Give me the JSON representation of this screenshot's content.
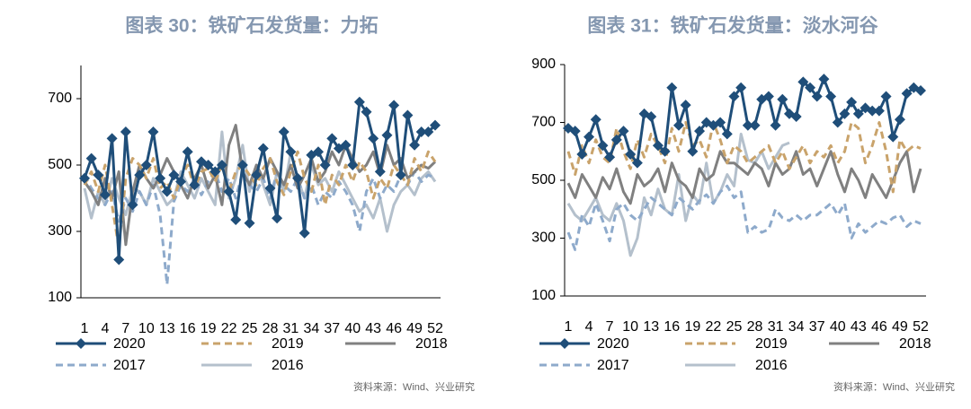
{
  "chart_data": [
    {
      "type": "line",
      "title": "图表 30：铁矿石发货量：力拓",
      "source": "资料来源：Wind、兴业研究",
      "categories": [
        "1",
        null,
        null,
        "4",
        null,
        null,
        "7",
        null,
        null,
        "10",
        null,
        null,
        "13",
        null,
        null,
        "16",
        null,
        null,
        "19",
        null,
        null,
        "22",
        null,
        null,
        "25",
        null,
        null,
        "28",
        null,
        null,
        "31",
        null,
        null,
        "34",
        null,
        null,
        "37",
        null,
        null,
        "40",
        null,
        null,
        "43",
        null,
        null,
        "46",
        null,
        null,
        "49",
        null,
        null,
        "52"
      ],
      "ylim": [
        100,
        800
      ],
      "yticks": [
        100,
        300,
        500,
        700
      ],
      "series": [
        {
          "name": "2020",
          "color": "#1f4e79",
          "marker": "diamond",
          "linestyle": "solid",
          "values": [
            460,
            520,
            470,
            410,
            580,
            215,
            600,
            380,
            470,
            500,
            600,
            460,
            420,
            470,
            450,
            540,
            440,
            510,
            500,
            480,
            500,
            420,
            335,
            500,
            325,
            470,
            550,
            430,
            340,
            600,
            540,
            460,
            295,
            530,
            540,
            500,
            580,
            550,
            560,
            500,
            690,
            660,
            580,
            480,
            590,
            680,
            470,
            650,
            560,
            600,
            600,
            620
          ]
        },
        {
          "name": "2019",
          "color": "#c9a36b",
          "marker": null,
          "linestyle": "dashed",
          "values": [
            440,
            480,
            420,
            500,
            380,
            250,
            460,
            520,
            500,
            460,
            520,
            430,
            450,
            400,
            460,
            500,
            430,
            480,
            490,
            450,
            500,
            420,
            480,
            500,
            470,
            440,
            490,
            520,
            450,
            410,
            480,
            540,
            460,
            420,
            500,
            380,
            470,
            440,
            500,
            450,
            510,
            480,
            400,
            460,
            430,
            500,
            470,
            440,
            520,
            480,
            540,
            510
          ]
        },
        {
          "name": "2018",
          "color": "#808080",
          "marker": null,
          "linestyle": "solid",
          "values": [
            450,
            420,
            380,
            460,
            400,
            480,
            260,
            420,
            500,
            460,
            430,
            470,
            520,
            480,
            440,
            400,
            460,
            500,
            430,
            470,
            380,
            560,
            620,
            480,
            440,
            500,
            460,
            520,
            480,
            440,
            500,
            430,
            470,
            520,
            450,
            480,
            540,
            500,
            560,
            520,
            480,
            500,
            540,
            470,
            560,
            500,
            520,
            460,
            480,
            500,
            490,
            510
          ]
        },
        {
          "name": "2017",
          "color": "#8eaacb",
          "marker": null,
          "linestyle": "dashed",
          "values": [
            470,
            430,
            400,
            380,
            420,
            330,
            400,
            360,
            420,
            380,
            440,
            350,
            140,
            390,
            440,
            420,
            460,
            410,
            450,
            480,
            420,
            460,
            400,
            480,
            440,
            420,
            460,
            400,
            480,
            440,
            420,
            460,
            400,
            440,
            380,
            420,
            400,
            450,
            420,
            380,
            300,
            420,
            460,
            400,
            440,
            420,
            470,
            440,
            480,
            450,
            470,
            460
          ]
        },
        {
          "name": "2016",
          "color": "#b4c0cc",
          "marker": null,
          "linestyle": "solid",
          "values": [
            430,
            340,
            420,
            380,
            460,
            400,
            350,
            430,
            420,
            380,
            460,
            420,
            380,
            400,
            480,
            440,
            400,
            460,
            420,
            380,
            600,
            400,
            460,
            560,
            420,
            500,
            440,
            380,
            480,
            420,
            540,
            460,
            400,
            500,
            440,
            460,
            420,
            480,
            440,
            400,
            360,
            380,
            340,
            400,
            300,
            380,
            420,
            440,
            410,
            460,
            480,
            450
          ]
        }
      ]
    },
    {
      "type": "line",
      "title": "图表 31：铁矿石发货量：淡水河谷",
      "source": "资料来源：Wind、兴业研究",
      "categories": [
        "1",
        null,
        null,
        "4",
        null,
        null,
        "7",
        null,
        null,
        "10",
        null,
        null,
        "13",
        null,
        null,
        "16",
        null,
        null,
        "19",
        null,
        null,
        "22",
        null,
        null,
        "25",
        null,
        null,
        "28",
        null,
        null,
        "31",
        null,
        null,
        "34",
        null,
        null,
        "37",
        null,
        null,
        "40",
        null,
        null,
        "43",
        null,
        null,
        "46",
        null,
        null,
        "49",
        null,
        null,
        "52"
      ],
      "ylim": [
        100,
        900
      ],
      "yticks": [
        100,
        300,
        500,
        700,
        900
      ],
      "series": [
        {
          "name": "2020",
          "color": "#1f4e79",
          "marker": "diamond",
          "linestyle": "solid",
          "values": [
            680,
            670,
            590,
            650,
            710,
            620,
            580,
            640,
            670,
            590,
            560,
            730,
            720,
            620,
            600,
            820,
            690,
            760,
            600,
            670,
            700,
            690,
            700,
            660,
            790,
            820,
            690,
            690,
            780,
            790,
            690,
            780,
            730,
            720,
            840,
            820,
            790,
            850,
            790,
            700,
            730,
            770,
            730,
            750,
            740,
            740,
            790,
            650,
            710,
            800,
            820,
            810
          ]
        },
        {
          "name": "2019",
          "color": "#c9a36b",
          "marker": null,
          "linestyle": "dashed",
          "values": [
            600,
            520,
            620,
            560,
            640,
            580,
            560,
            680,
            600,
            540,
            640,
            580,
            660,
            620,
            560,
            680,
            600,
            700,
            620,
            640,
            580,
            700,
            640,
            560,
            620,
            600,
            560,
            580,
            600,
            620,
            560,
            600,
            540,
            580,
            620,
            560,
            600,
            580,
            620,
            560,
            600,
            700,
            680,
            560,
            620,
            700,
            600,
            460,
            640,
            600,
            620,
            610
          ]
        },
        {
          "name": "2018",
          "color": "#808080",
          "marker": null,
          "linestyle": "solid",
          "values": [
            490,
            440,
            520,
            480,
            440,
            510,
            470,
            540,
            460,
            420,
            520,
            480,
            500,
            540,
            460,
            560,
            500,
            480,
            440,
            540,
            500,
            520,
            600,
            560,
            560,
            540,
            520,
            560,
            540,
            480,
            560,
            520,
            540,
            600,
            520,
            540,
            480,
            540,
            600,
            520,
            460,
            540,
            500,
            440,
            520,
            480,
            440,
            500,
            560,
            600,
            460,
            540
          ]
        },
        {
          "name": "2017",
          "color": "#8eaacb",
          "marker": null,
          "linestyle": "dashed",
          "values": [
            320,
            260,
            380,
            340,
            420,
            360,
            290,
            400,
            420,
            380,
            360,
            400,
            440,
            420,
            400,
            380,
            440,
            420,
            400,
            430,
            450,
            420,
            460,
            480,
            440,
            460,
            320,
            340,
            320,
            330,
            400,
            370,
            360,
            380,
            360,
            380,
            380,
            400,
            420,
            380,
            420,
            300,
            350,
            320,
            340,
            360,
            350,
            370,
            380,
            340,
            360,
            350
          ]
        },
        {
          "name": "2016",
          "color": "#b4c0cc",
          "marker": null,
          "linestyle": "solid",
          "values": [
            420,
            380,
            360,
            400,
            440,
            380,
            360,
            420,
            360,
            240,
            300,
            440,
            380,
            470,
            400,
            380,
            520,
            360,
            450,
            420,
            560,
            420,
            460,
            520,
            480,
            660,
            570,
            560,
            600,
            540,
            580,
            620,
            630,
            null,
            null,
            null,
            null,
            null,
            null,
            null,
            null,
            null,
            null,
            null,
            null,
            null,
            null,
            null,
            null,
            null,
            null,
            null
          ]
        }
      ]
    }
  ]
}
